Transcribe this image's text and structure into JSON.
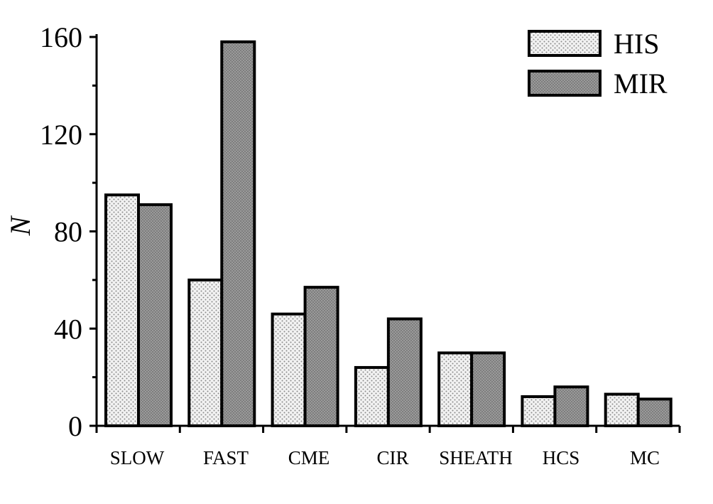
{
  "chart_data": {
    "type": "bar",
    "categories": [
      "SLOW",
      "FAST",
      "CME",
      "CIR",
      "SHEATH",
      "HCS",
      "MC"
    ],
    "series": [
      {
        "name": "HIS",
        "values": [
          95,
          60,
          46,
          24,
          30,
          12,
          13
        ],
        "pattern": "light-dotted"
      },
      {
        "name": "MIR",
        "values": [
          91,
          158,
          57,
          44,
          30,
          16,
          11
        ],
        "pattern": "dark-dotted"
      }
    ],
    "title": "",
    "xlabel": "",
    "ylabel": "N",
    "ylim": [
      0,
      160
    ],
    "yticks": [
      0,
      40,
      80,
      120,
      160
    ],
    "grid": false,
    "legend": "top-right",
    "colors": {
      "his_fill": "#e8e8e8",
      "mir_fill": "#8c8c8c",
      "stroke": "#000000"
    }
  }
}
